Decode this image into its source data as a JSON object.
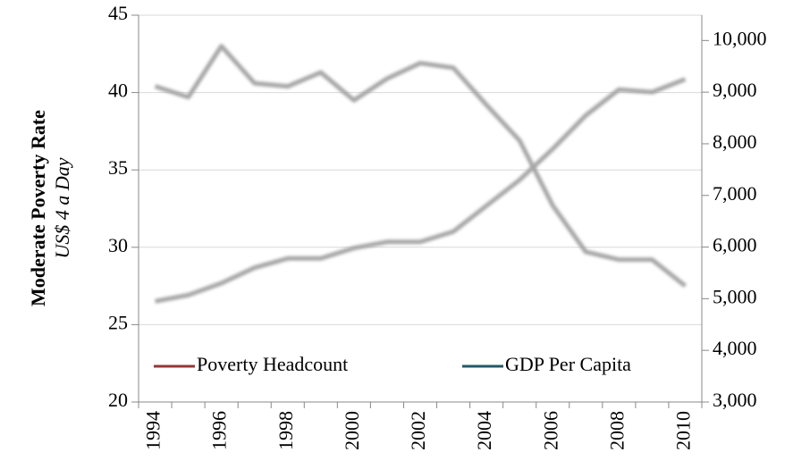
{
  "chart_data": {
    "type": "line",
    "y_label": "Moderate Poverty Rate",
    "y_sublabel": "US$ 4 a Day",
    "categories": [
      "1994",
      null,
      "1996",
      null,
      "1998",
      null,
      "2000",
      null,
      "2002",
      null,
      "2004",
      null,
      "2006",
      null,
      "2008",
      null,
      "2010"
    ],
    "series": [
      {
        "name": "Poverty Headcount",
        "color": "#943634",
        "axis": "y",
        "values": [
          40.4,
          39.7,
          43.0,
          40.6,
          40.4,
          41.3,
          39.5,
          40.9,
          41.9,
          41.6,
          39.2,
          36.9,
          32.7,
          29.7,
          29.2,
          29.2,
          27.5
        ]
      },
      {
        "name": "GDP Per Capita",
        "color": "#215968",
        "axis": "y2",
        "values": [
          4950,
          5070,
          5300,
          5600,
          5780,
          5780,
          5980,
          6100,
          6100,
          6300,
          6800,
          7300,
          7900,
          8550,
          9050,
          9000,
          9250
        ]
      }
    ],
    "line_color": "#a6a6a6",
    "ylim": [
      20,
      45
    ],
    "yticks": [
      20,
      25,
      30,
      35,
      40,
      45
    ],
    "y2lim": [
      3000,
      10490
    ],
    "y2ticks": [
      {
        "value": 3000,
        "label": "3,000"
      },
      {
        "value": 4000,
        "label": "4,000"
      },
      {
        "value": 5000,
        "label": "5,000"
      },
      {
        "value": 6000,
        "label": "6,000"
      },
      {
        "value": 7000,
        "label": "7,000"
      },
      {
        "value": 8000,
        "label": "8,000"
      },
      {
        "value": 9000,
        "label": "9,000"
      },
      {
        "value": 10000,
        "label": "10,000"
      }
    ],
    "grid": true,
    "legend": "bottom-left"
  }
}
